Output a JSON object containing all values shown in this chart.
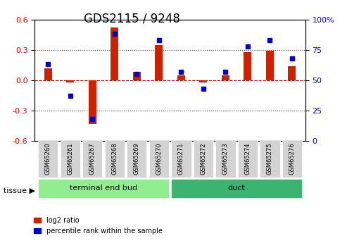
{
  "title": "GDS2115 / 9248",
  "samples": [
    "GSM65260",
    "GSM65261",
    "GSM65267",
    "GSM65268",
    "GSM65269",
    "GSM65270",
    "GSM65271",
    "GSM65272",
    "GSM65273",
    "GSM65274",
    "GSM65275",
    "GSM65276"
  ],
  "log2_ratio": [
    0.12,
    -0.02,
    -0.43,
    0.52,
    0.08,
    0.35,
    0.05,
    -0.02,
    0.05,
    0.28,
    0.29,
    0.14
  ],
  "percentile_rank": [
    63,
    37,
    18,
    88,
    55,
    83,
    57,
    43,
    57,
    78,
    83,
    68
  ],
  "groups": [
    {
      "label": "terminal end bud",
      "start": 0,
      "end": 6,
      "color": "#90EE90"
    },
    {
      "label": "duct",
      "start": 6,
      "end": 12,
      "color": "#3CB371"
    }
  ],
  "ylim_left": [
    -0.6,
    0.6
  ],
  "ylim_right": [
    0,
    100
  ],
  "yticks_left": [
    -0.6,
    -0.3,
    0.0,
    0.3,
    0.6
  ],
  "yticks_right": [
    0,
    25,
    50,
    75,
    100
  ],
  "bar_color_red": "#CC2200",
  "bar_color_blue": "#0000CC",
  "dotted_line_color": "#333333",
  "zero_line_color": "#CC0000",
  "background_color": "#ffffff",
  "title_fontsize": 12,
  "tissue_label": "tissue",
  "legend_red": "log2 ratio",
  "legend_blue": "percentile rank within the sample"
}
